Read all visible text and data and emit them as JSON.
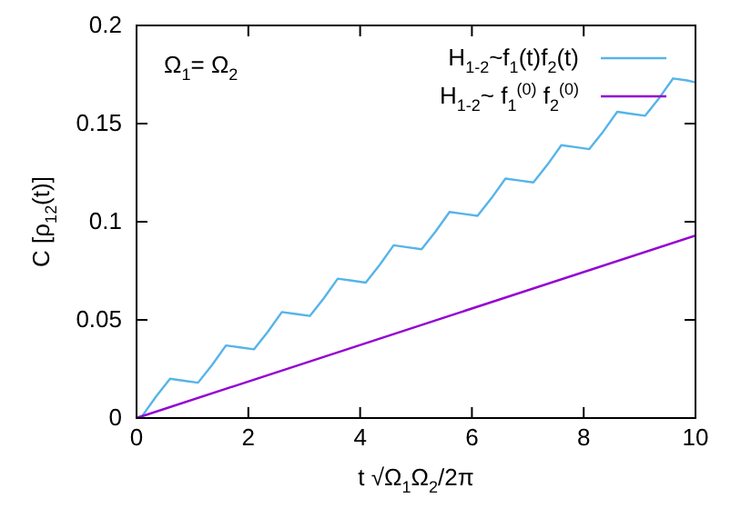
{
  "chart_data": {
    "type": "line",
    "xlabel": "t √Ω$_{1}$Ω$_{2}$/2π",
    "ylabel": "C [ρ$_{12}$(t)]",
    "xlim": [
      0,
      10
    ],
    "ylim": [
      0,
      0.2
    ],
    "xticks": [
      0,
      2,
      4,
      6,
      8,
      10
    ],
    "yticks": [
      0,
      0.05,
      0.1,
      0.15,
      0.2
    ],
    "grid": false,
    "legend": "top right",
    "line_style": "solid",
    "marker": "none",
    "annotations": [
      "Ω$_{1}$= Ω$_{2}$"
    ],
    "series": [
      {
        "name": "H$_{1-2}$~f$_{1}$(t)f$_{2}$(t)",
        "color": "#56b4e9",
        "x": [
          0,
          0.1,
          0.35,
          0.6,
          0.85,
          1.1,
          1.35,
          1.6,
          1.85,
          2.1,
          2.35,
          2.6,
          2.85,
          3.1,
          3.35,
          3.6,
          3.85,
          4.1,
          4.35,
          4.6,
          4.85,
          5.1,
          5.35,
          5.6,
          5.85,
          6.1,
          6.35,
          6.6,
          6.85,
          7.1,
          7.35,
          7.6,
          7.85,
          8.1,
          8.35,
          8.6,
          8.85,
          9.1,
          9.35,
          9.6,
          9.85,
          10
        ],
        "values": [
          0,
          0.001,
          0.011,
          0.02,
          0.019,
          0.018,
          0.027,
          0.037,
          0.036,
          0.035,
          0.044,
          0.054,
          0.053,
          0.052,
          0.061,
          0.071,
          0.07,
          0.069,
          0.078,
          0.088,
          0.087,
          0.086,
          0.095,
          0.105,
          0.104,
          0.103,
          0.112,
          0.122,
          0.121,
          0.12,
          0.129,
          0.139,
          0.138,
          0.137,
          0.146,
          0.156,
          0.155,
          0.154,
          0.163,
          0.173,
          0.172,
          0.171
        ]
      },
      {
        "name": "H$_{1-2}$~ f$_{1}$$^{(0)}$ f$_{2}$$^{(0)}$",
        "color": "#9400d3",
        "x": [
          0,
          10
        ],
        "values": [
          0,
          0.093
        ]
      }
    ]
  }
}
